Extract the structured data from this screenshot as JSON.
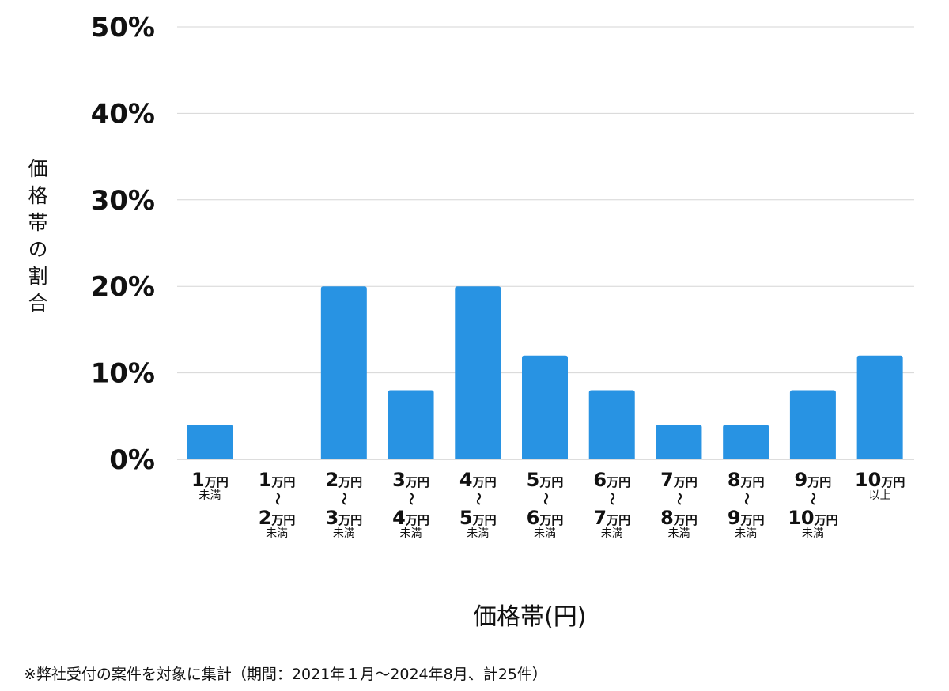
{
  "chart_data": {
    "type": "bar",
    "title": "",
    "xlabel": "価格帯(円)",
    "ylabel": "価格帯の割合",
    "ylim": [
      0,
      50
    ],
    "yticks": [
      "0%",
      "10%",
      "20%",
      "30%",
      "40%",
      "50%"
    ],
    "ytick_values": [
      0,
      10,
      20,
      30,
      40,
      50
    ],
    "grid": true,
    "bar_color": "#2893e3",
    "categories": [
      {
        "num1": "1",
        "unit1": "万円",
        "sep": "",
        "num2": "",
        "unit2": "",
        "note": "未満"
      },
      {
        "num1": "1",
        "unit1": "万円",
        "sep": "～",
        "num2": "2",
        "unit2": "万円",
        "note": "未満"
      },
      {
        "num1": "2",
        "unit1": "万円",
        "sep": "～",
        "num2": "3",
        "unit2": "万円",
        "note": "未満"
      },
      {
        "num1": "3",
        "unit1": "万円",
        "sep": "～",
        "num2": "4",
        "unit2": "万円",
        "note": "未満"
      },
      {
        "num1": "4",
        "unit1": "万円",
        "sep": "～",
        "num2": "5",
        "unit2": "万円",
        "note": "未満"
      },
      {
        "num1": "5",
        "unit1": "万円",
        "sep": "～",
        "num2": "6",
        "unit2": "万円",
        "note": "未満"
      },
      {
        "num1": "6",
        "unit1": "万円",
        "sep": "～",
        "num2": "7",
        "unit2": "万円",
        "note": "未満"
      },
      {
        "num1": "7",
        "unit1": "万円",
        "sep": "～",
        "num2": "8",
        "unit2": "万円",
        "note": "未満"
      },
      {
        "num1": "8",
        "unit1": "万円",
        "sep": "～",
        "num2": "9",
        "unit2": "万円",
        "note": "未満"
      },
      {
        "num1": "9",
        "unit1": "万円",
        "sep": "～",
        "num2": "10",
        "unit2": "万円",
        "note": "未満"
      },
      {
        "num1": "10",
        "unit1": "万円",
        "sep": "",
        "num2": "",
        "unit2": "",
        "note": "以上"
      }
    ],
    "values": [
      4,
      0,
      20,
      8,
      20,
      12,
      8,
      4,
      4,
      8,
      12
    ]
  },
  "footnote": "※弊社受付の案件を対象に集計（期間：2021年１月～2024年8月、計25件）"
}
